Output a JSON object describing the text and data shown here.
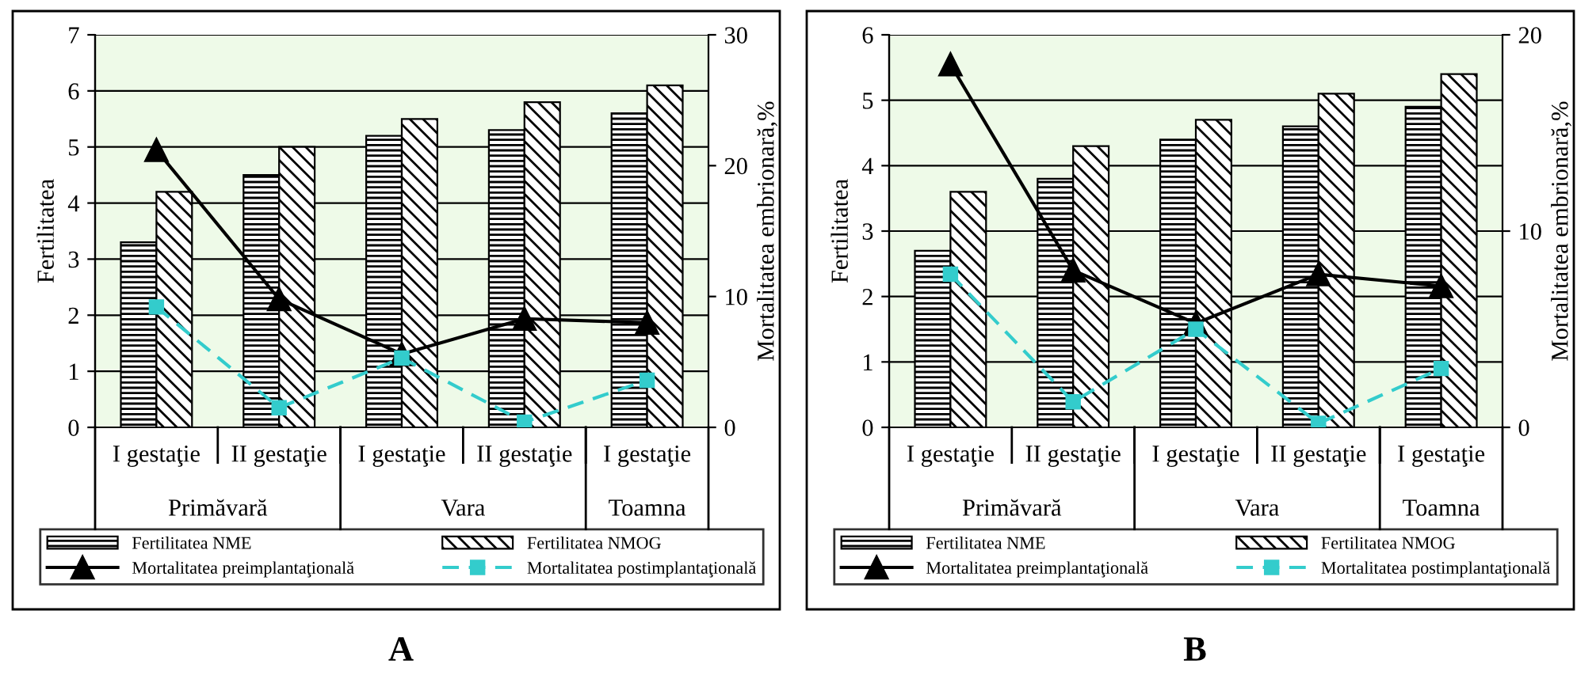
{
  "chart_data": [
    {
      "type": "bar",
      "title": "A",
      "ylabel": "Fertilitatea",
      "y2label": "Mortalitatea embrionară,%",
      "categories": [
        "I gestaţie",
        "II gestaţie",
        "I gestaţie",
        "II gestaţie",
        "I gestaţie"
      ],
      "annotations": [
        "Primăvară",
        "Vara",
        "Toamna"
      ],
      "series": [
        {
          "name": "Fertilitatea NME",
          "color": "#000000",
          "values": [
            3.3,
            4.5,
            5.2,
            5.3,
            5.6
          ]
        },
        {
          "name": "Fertilitatea NMOG",
          "color": "#000000",
          "values": [
            4.2,
            5.0,
            5.5,
            5.8,
            6.1
          ]
        },
        {
          "name": "Mortalitatea preimplantaţională",
          "type": "line",
          "axis": "y2",
          "color": "#000000",
          "marker": "triangle",
          "line_style": "solid",
          "values": [
            21.2,
            9.8,
            5.6,
            8.3,
            8.0
          ]
        },
        {
          "name": "Mortalitatea postimplantaţională",
          "type": "line",
          "axis": "y2",
          "color": "#33cccc",
          "marker": "square",
          "line_style": "dashed",
          "values": [
            9.2,
            1.5,
            5.3,
            0.4,
            3.6
          ]
        }
      ],
      "ylim": [
        0,
        7
      ],
      "yticks": [
        0,
        1,
        2,
        3,
        4,
        5,
        6,
        7
      ],
      "y2lim": [
        0,
        30
      ],
      "y2ticks": [
        0,
        10,
        20,
        30
      ],
      "grid": "y",
      "legend": "bottom"
    },
    {
      "type": "bar",
      "title": "B",
      "ylabel": "Fertilitatea",
      "y2label": "Mortalitatea embrionară,%",
      "categories": [
        "I gestaţie",
        "II gestaţie",
        "I gestaţie",
        "II gestaţie",
        "I gestaţie"
      ],
      "annotations": [
        "Primăvară",
        "Vara",
        "Toamna"
      ],
      "series": [
        {
          "name": "Fertilitatea NME",
          "color": "#000000",
          "values": [
            2.7,
            3.8,
            4.4,
            4.6,
            4.9
          ]
        },
        {
          "name": "Fertilitatea NMOG",
          "color": "#000000",
          "values": [
            3.6,
            4.3,
            4.7,
            5.1,
            5.4
          ]
        },
        {
          "name": "Mortalitatea preimplantaţională",
          "type": "line",
          "axis": "y2",
          "color": "#000000",
          "marker": "triangle",
          "line_style": "solid",
          "values": [
            18.5,
            8.0,
            5.3,
            7.8,
            7.2
          ]
        },
        {
          "name": "Mortalitatea postimplantaţională",
          "type": "line",
          "axis": "y2",
          "color": "#33cccc",
          "marker": "square",
          "line_style": "dashed",
          "values": [
            7.8,
            1.3,
            5.0,
            0.2,
            3.0
          ]
        }
      ],
      "ylim": [
        0,
        6
      ],
      "yticks": [
        0,
        1,
        2,
        3,
        4,
        5,
        6
      ],
      "y2lim": [
        0,
        20
      ],
      "y2ticks": [
        0,
        10,
        20
      ],
      "grid": "y",
      "legend": "bottom"
    }
  ]
}
